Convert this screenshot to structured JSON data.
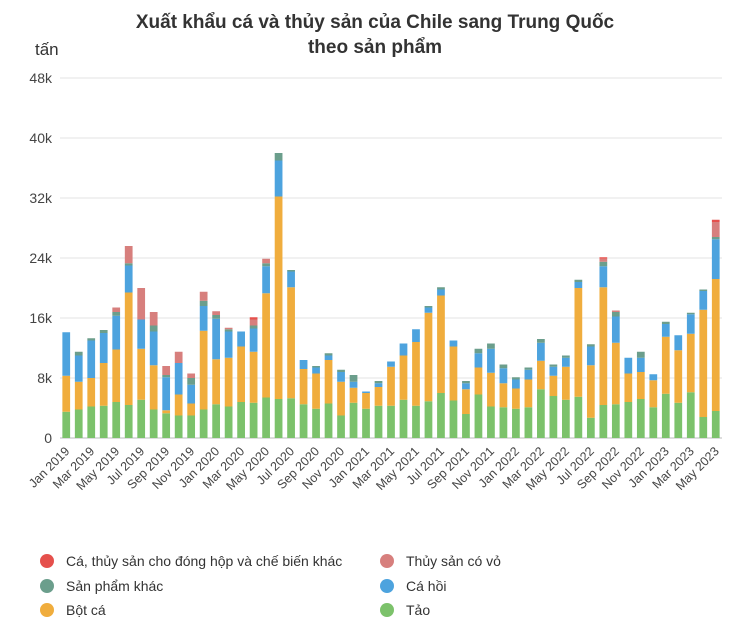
{
  "title_line1": "Xuất khẩu cá và thủy sản của Chile sang Trung Quốc",
  "title_line2": "theo sản phẩm",
  "y_unit": "tấn",
  "chart_data": {
    "type": "bar",
    "stacked": true,
    "ylim": [
      0,
      48000
    ],
    "yticks": [
      0,
      8000,
      16000,
      24000,
      32000,
      40000,
      48000
    ],
    "ytick_labels": [
      "0",
      "8k",
      "16k",
      "24k",
      "32k",
      "40k",
      "48k"
    ],
    "grid": "horizontal",
    "legend_position": "bottom",
    "categories": [
      "Jan 2019",
      "Feb 2019",
      "Mar 2019",
      "Apr 2019",
      "May 2019",
      "Jun 2019",
      "Jul 2019",
      "Aug 2019",
      "Sep 2019",
      "Oct 2019",
      "Nov 2019",
      "Dec 2019",
      "Jan 2020",
      "Feb 2020",
      "Mar 2020",
      "Apr 2020",
      "May 2020",
      "Jun 2020",
      "Jul 2020",
      "Aug 2020",
      "Sep 2020",
      "Oct 2020",
      "Nov 2020",
      "Dec 2020",
      "Jan 2021",
      "Feb 2021",
      "Mar 2021",
      "Apr 2021",
      "May 2021",
      "Jun 2021",
      "Jul 2021",
      "Aug 2021",
      "Sep 2021",
      "Oct 2021",
      "Nov 2021",
      "Dec 2021",
      "Jan 2022",
      "Feb 2022",
      "Mar 2022",
      "Apr 2022",
      "May 2022",
      "Jun 2022",
      "Jul 2022",
      "Aug 2022",
      "Sep 2022",
      "Oct 2022",
      "Nov 2022",
      "Dec 2022",
      "Jan 2023",
      "Feb 2023",
      "Mar 2023",
      "Apr 2023",
      "May 2023"
    ],
    "xtick_labels": [
      "Jan 2019",
      "Mar 2019",
      "May 2019",
      "Jul 2019",
      "Sep 2019",
      "Nov 2019",
      "Jan 2020",
      "Mar 2020",
      "May 2020",
      "Jul 2020",
      "Sep 2020",
      "Nov 2020",
      "Jan 2021",
      "Mar 2021",
      "May 2021",
      "Jul 2021",
      "Sep 2021",
      "Nov 2021",
      "Jan 2022",
      "Mar 2022",
      "May 2022",
      "Jul 2022",
      "Sep 2022",
      "Nov 2022",
      "Jan 2023",
      "Mar 2023",
      "May 2023"
    ],
    "series": [
      {
        "name": "Tảo",
        "color": "#7cc26b",
        "values": [
          3500,
          3800,
          4200,
          4300,
          4800,
          4400,
          5100,
          3800,
          3300,
          3000,
          3000,
          3800,
          4500,
          4200,
          4800,
          4700,
          5400,
          5200,
          5300,
          4500,
          3900,
          4600,
          3000,
          4700,
          3900,
          4300,
          4300,
          5100,
          4300,
          4900,
          6000,
          5000,
          3200,
          5800,
          4200,
          4100,
          3900,
          4100,
          6500,
          5600,
          5100,
          5500,
          2700,
          4400,
          4500,
          4800,
          5200,
          4100,
          5900,
          4700,
          6100,
          2800,
          3600
        ]
      },
      {
        "name": "Bột cá",
        "color": "#f0ad3d",
        "values": [
          4800,
          3700,
          3800,
          5700,
          7000,
          15000,
          6800,
          5900,
          400,
          2800,
          1600,
          10500,
          6000,
          6500,
          7400,
          6800,
          13900,
          27000,
          14800,
          4700,
          4700,
          5800,
          4500,
          2000,
          2100,
          2500,
          5200,
          5900,
          8500,
          11800,
          13000,
          7200,
          3300,
          3600,
          4500,
          3200,
          2700,
          3700,
          3800,
          2700,
          4400,
          14500,
          7000,
          15700,
          8200,
          3800,
          3600,
          3600,
          7600,
          7000,
          7800,
          14300,
          17600
        ]
      },
      {
        "name": "Cá hồi",
        "color": "#4da3de",
        "values": [
          5800,
          3500,
          5000,
          4000,
          4500,
          3600,
          3900,
          4500,
          4400,
          4200,
          2500,
          3300,
          5400,
          3500,
          2000,
          3100,
          3600,
          4800,
          2100,
          1200,
          800,
          600,
          1300,
          800,
          200,
          500,
          700,
          1600,
          1700,
          700,
          800,
          800,
          800,
          1900,
          3200,
          2000,
          1200,
          1300,
          2400,
          1200,
          1200,
          800,
          2500,
          2800,
          3500,
          2100,
          1900,
          800,
          1700,
          2000,
          2600,
          2500,
          5300
        ]
      },
      {
        "name": "Sản phẩm khác",
        "color": "#6b9e8c",
        "values": [
          0,
          500,
          300,
          400,
          500,
          300,
          0,
          800,
          300,
          0,
          900,
          700,
          500,
          300,
          0,
          400,
          400,
          1000,
          200,
          0,
          200,
          300,
          300,
          900,
          0,
          300,
          0,
          0,
          0,
          200,
          300,
          0,
          300,
          600,
          700,
          500,
          300,
          300,
          500,
          300,
          300,
          300,
          300,
          600,
          600,
          0,
          800,
          0,
          300,
          0,
          200,
          200,
          300
        ]
      },
      {
        "name": "Thủy sản có vỏ",
        "color": "#d77f7d",
        "values": [
          0,
          0,
          0,
          0,
          600,
          2300,
          4200,
          1800,
          1200,
          1500,
          600,
          1200,
          500,
          200,
          0,
          800,
          600,
          0,
          0,
          0,
          0,
          0,
          0,
          0,
          0,
          0,
          0,
          0,
          0,
          0,
          0,
          0,
          0,
          0,
          0,
          0,
          0,
          0,
          0,
          0,
          0,
          0,
          0,
          400,
          200,
          0,
          0,
          0,
          0,
          0,
          0,
          0,
          2000
        ]
      },
      {
        "name": "Cá, thủy sản cho đóng hộp và chế biến khác",
        "color": "#e5504c",
        "values": [
          0,
          0,
          0,
          0,
          0,
          0,
          0,
          0,
          0,
          0,
          0,
          0,
          0,
          0,
          0,
          300,
          0,
          0,
          0,
          0,
          0,
          0,
          0,
          0,
          0,
          0,
          0,
          0,
          0,
          0,
          0,
          0,
          0,
          0,
          0,
          0,
          0,
          0,
          0,
          0,
          0,
          0,
          0,
          200,
          0,
          0,
          0,
          0,
          0,
          0,
          0,
          0,
          300
        ]
      }
    ]
  },
  "legend": [
    {
      "label": "Cá, thủy sản cho đóng hộp và chế biến khác",
      "color": "#e5504c"
    },
    {
      "label": "Thủy sản có vỏ",
      "color": "#d77f7d"
    },
    {
      "label": "Sản phẩm khác",
      "color": "#6b9e8c"
    },
    {
      "label": "Cá hồi",
      "color": "#4da3de"
    },
    {
      "label": "Bột cá",
      "color": "#f0ad3d"
    },
    {
      "label": "Tảo",
      "color": "#7cc26b"
    }
  ]
}
